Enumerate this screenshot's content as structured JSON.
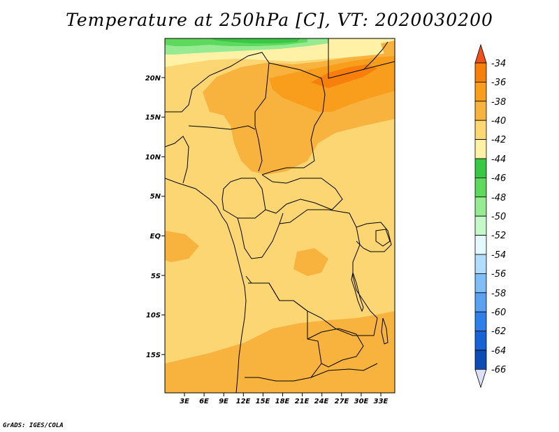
{
  "title": "Temperature at 250hPa [C], VT: 2020030200",
  "credit": "GrADS: IGES/COLA",
  "map": {
    "lon_labels": [
      "3E",
      "6E",
      "9E",
      "12E",
      "15E",
      "18E",
      "21E",
      "24E",
      "27E",
      "30E",
      "33E"
    ],
    "lat_labels": [
      "20N",
      "15N",
      "10N",
      "5N",
      "EQ",
      "5S",
      "10S",
      "15S"
    ]
  },
  "colorbar": {
    "labels": [
      "-34",
      "-36",
      "-38",
      "-40",
      "-42",
      "-44",
      "-46",
      "-48",
      "-50",
      "-52",
      "-54",
      "-56",
      "-58",
      "-60",
      "-62",
      "-64",
      "-66"
    ],
    "colors": [
      "#f0501c",
      "#f77f0c",
      "#f99e1c",
      "#f8b33f",
      "#fcd772",
      "#fff2a7",
      "#38c845",
      "#5ed95c",
      "#95ea92",
      "#c7f8c7",
      "#e4f9ff",
      "#b1dcfb",
      "#7fbdf6",
      "#5aa1f1",
      "#2f80ea",
      "#1662d6",
      "#0c4ab4",
      "#0b1a7d",
      "#dde0fb"
    ]
  },
  "fields": {
    "base": "#fbd673",
    "level_38": "#f8b33f",
    "level_36": "#f99e1c",
    "level_34": "#f77f0c",
    "level_42": "#fff2a7",
    "level_44": "#95ea92",
    "level_46": "#5ed95c",
    "level_48": "#38c845"
  }
}
